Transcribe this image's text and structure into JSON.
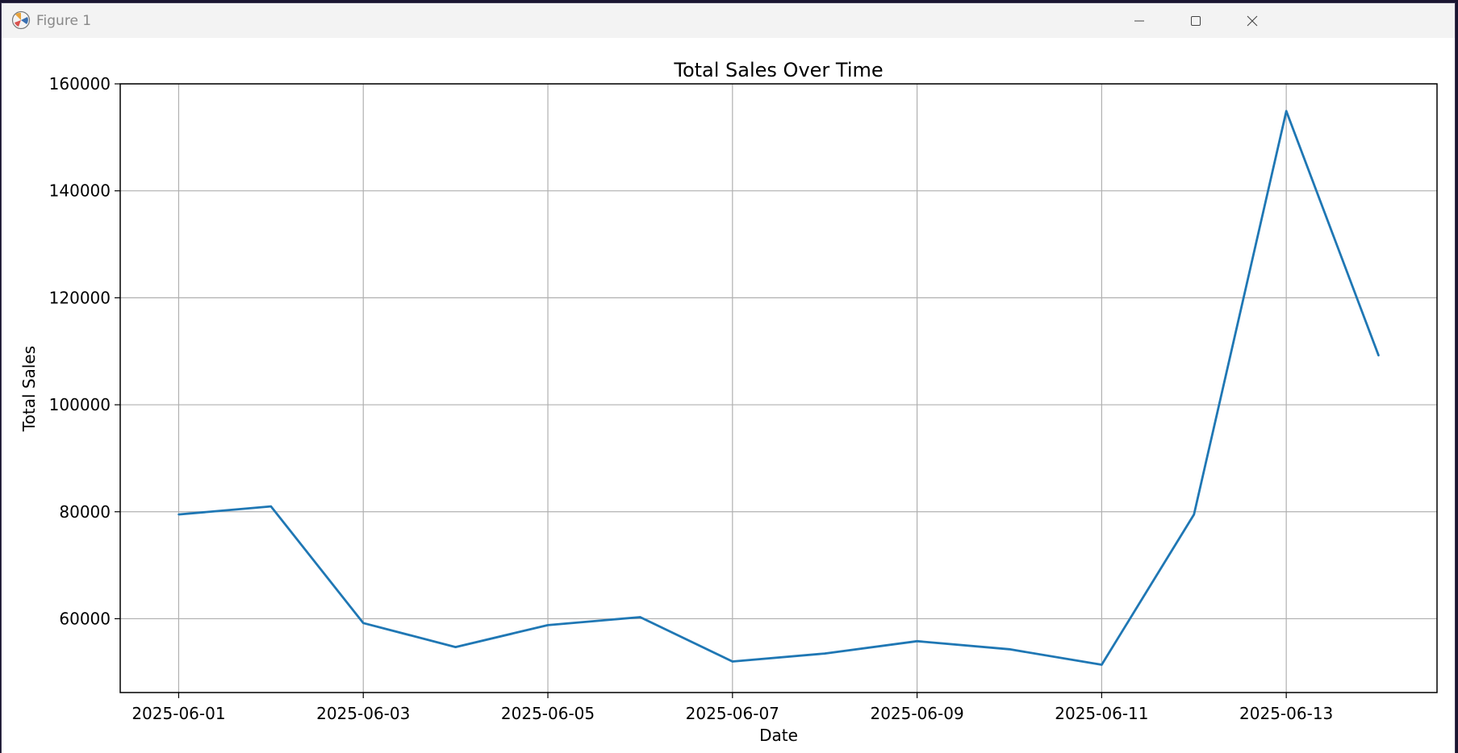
{
  "window": {
    "title": "Figure 1",
    "icon": "matplotlib-icon",
    "controls": [
      "minimize-icon",
      "maximize-icon",
      "close-icon"
    ]
  },
  "chart_data": {
    "type": "line",
    "title": "Total Sales Over Time",
    "xlabel": "Date",
    "ylabel": "Total Sales",
    "x": [
      "2025-06-01",
      "2025-06-02",
      "2025-06-03",
      "2025-06-04",
      "2025-06-05",
      "2025-06-06",
      "2025-06-07",
      "2025-06-08",
      "2025-06-09",
      "2025-06-10",
      "2025-06-11",
      "2025-06-12",
      "2025-06-13",
      "2025-06-14"
    ],
    "series": [
      {
        "values": [
          79500,
          81000,
          59200,
          54700,
          58800,
          60300,
          52000,
          53500,
          55800,
          54300,
          51400,
          79500,
          154900,
          109200
        ],
        "color": "#1f77b4"
      }
    ],
    "xticks": [
      "2025-06-01",
      "2025-06-03",
      "2025-06-05",
      "2025-06-07",
      "2025-06-09",
      "2025-06-11",
      "2025-06-13"
    ],
    "yticks": [
      60000,
      80000,
      100000,
      120000,
      140000,
      160000
    ],
    "xlim": [
      "2025-05-31T08:48",
      "2025-06-14T15:12"
    ],
    "ylim": [
      46200,
      160000
    ],
    "grid": true,
    "legend": "none"
  }
}
